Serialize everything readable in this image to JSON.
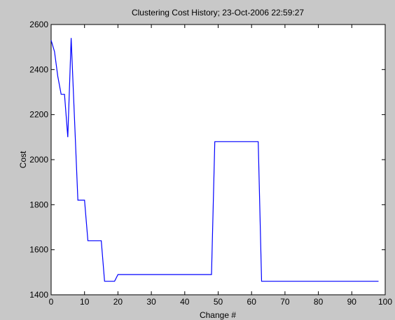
{
  "chart_data": {
    "type": "line",
    "title": "Clustering Cost History;  23-Oct-2006 22:59:27",
    "xlabel": "Change #",
    "ylabel": "Cost",
    "xlim": [
      0,
      100
    ],
    "ylim": [
      1400,
      2600
    ],
    "xticks": [
      0,
      10,
      20,
      30,
      40,
      50,
      60,
      70,
      80,
      90,
      100
    ],
    "yticks": [
      1400,
      1600,
      1800,
      2000,
      2200,
      2400,
      2600
    ],
    "grid": false,
    "line_color": "#0000ff",
    "x": [
      0,
      1,
      2,
      3,
      4,
      5,
      6,
      7,
      8,
      9,
      10,
      11,
      12,
      13,
      14,
      15,
      16,
      17,
      18,
      19,
      20,
      25,
      30,
      35,
      40,
      45,
      47,
      48,
      49,
      50,
      55,
      60,
      62,
      63,
      64,
      70,
      80,
      90,
      98
    ],
    "y": [
      2530,
      2480,
      2370,
      2290,
      2290,
      2100,
      2540,
      2180,
      1820,
      1820,
      1820,
      1640,
      1640,
      1640,
      1640,
      1640,
      1460,
      1460,
      1460,
      1460,
      1490,
      1490,
      1490,
      1490,
      1490,
      1490,
      1490,
      1490,
      2080,
      2080,
      2080,
      2080,
      2080,
      1460,
      1460,
      1460,
      1460,
      1460,
      1460
    ]
  }
}
